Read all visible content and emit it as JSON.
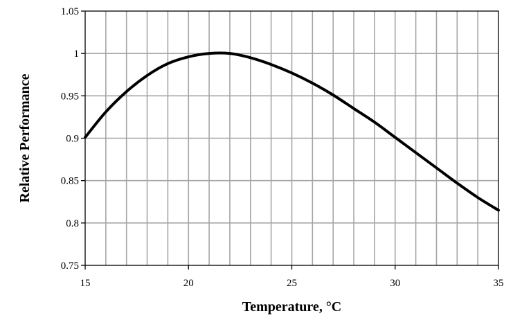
{
  "chart_data": {
    "type": "line",
    "xlabel": "Temperature, °C",
    "ylabel": "Relative Performance",
    "xlim": [
      15,
      35
    ],
    "ylim": [
      0.75,
      1.05
    ],
    "x_ticks": [
      15,
      20,
      25,
      30,
      35
    ],
    "x_tick_labels": [
      "15",
      "20",
      "25",
      "30",
      "35"
    ],
    "y_ticks": [
      0.75,
      0.8,
      0.85,
      0.9,
      0.95,
      1,
      1.05
    ],
    "y_tick_labels": [
      "0.75",
      "0.8",
      "0.85",
      "0.9",
      "0.95",
      "1",
      "1.05"
    ],
    "x_grid_step": 1,
    "y_grid_step": 0.05,
    "grid": true,
    "legend": "none",
    "series": [
      {
        "color": "#000000",
        "x": [
          15,
          16,
          17,
          18,
          19,
          20,
          21,
          22,
          23,
          24,
          25,
          26,
          27,
          28,
          29,
          30,
          31,
          32,
          33,
          34,
          35
        ],
        "y": [
          0.901,
          0.931,
          0.955,
          0.974,
          0.988,
          0.996,
          1.0,
          1.0,
          0.995,
          0.987,
          0.977,
          0.965,
          0.951,
          0.935,
          0.919,
          0.901,
          0.883,
          0.865,
          0.847,
          0.83,
          0.815
        ]
      }
    ]
  }
}
